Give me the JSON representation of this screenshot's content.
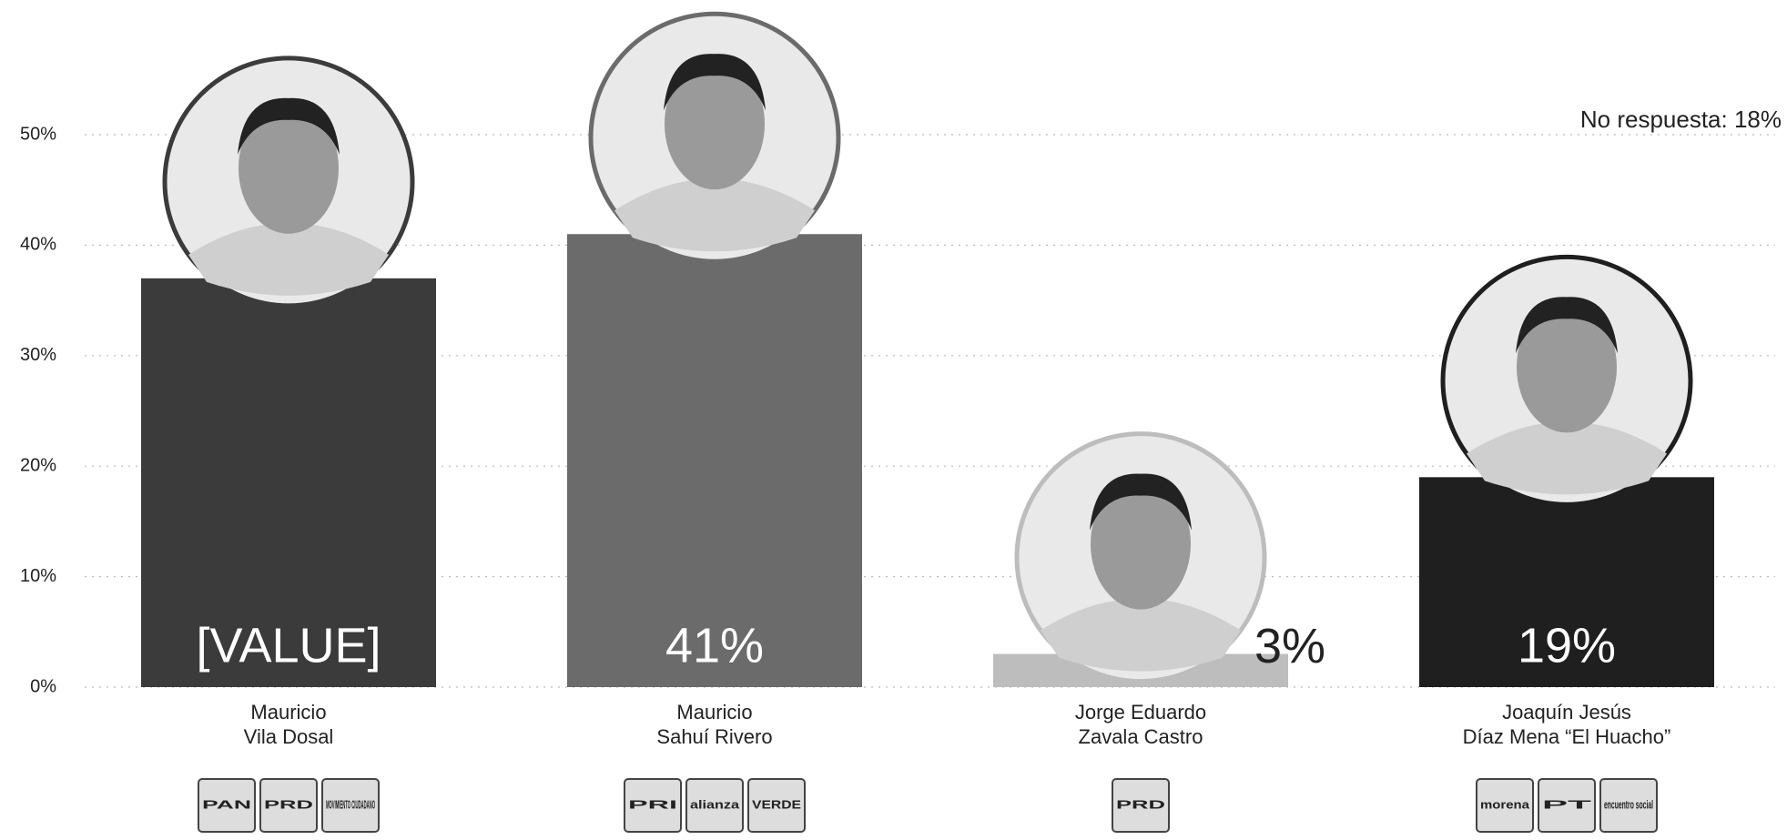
{
  "chart_data": {
    "type": "bar",
    "annotation": "No respuesta: 18%",
    "categories": [
      [
        "Mauricio",
        "Vila Dosal"
      ],
      [
        "Mauricio",
        "Sahuí Rivero"
      ],
      [
        "Jorge Eduardo",
        "Zavala Castro"
      ],
      [
        "Joaquín Jesús",
        "Díaz Mena “El Huacho”"
      ]
    ],
    "values": [
      37,
      41,
      3,
      19
    ],
    "value_labels": [
      "[VALUE]",
      "41%",
      "3%",
      "19%"
    ],
    "colors": [
      "#3b3b3b",
      "#6b6b6b",
      "#bdbdbd",
      "#1f1f1f"
    ],
    "parties": [
      [
        "PAN",
        "PRD",
        "MOVIMIENTO CIUDADANO"
      ],
      [
        "PRI",
        "alianza",
        "VERDE"
      ],
      [
        "PRD"
      ],
      [
        "morena",
        "PT",
        "encuentro social"
      ]
    ],
    "ylim": [
      0,
      50
    ],
    "yticks": [
      {
        "value": 0,
        "label": "0%"
      },
      {
        "value": 10,
        "label": "10%"
      },
      {
        "value": 20,
        "label": "20%"
      },
      {
        "value": 30,
        "label": "30%"
      },
      {
        "value": 40,
        "label": "40%"
      },
      {
        "value": 50,
        "label": "50%"
      }
    ],
    "grid": true
  }
}
